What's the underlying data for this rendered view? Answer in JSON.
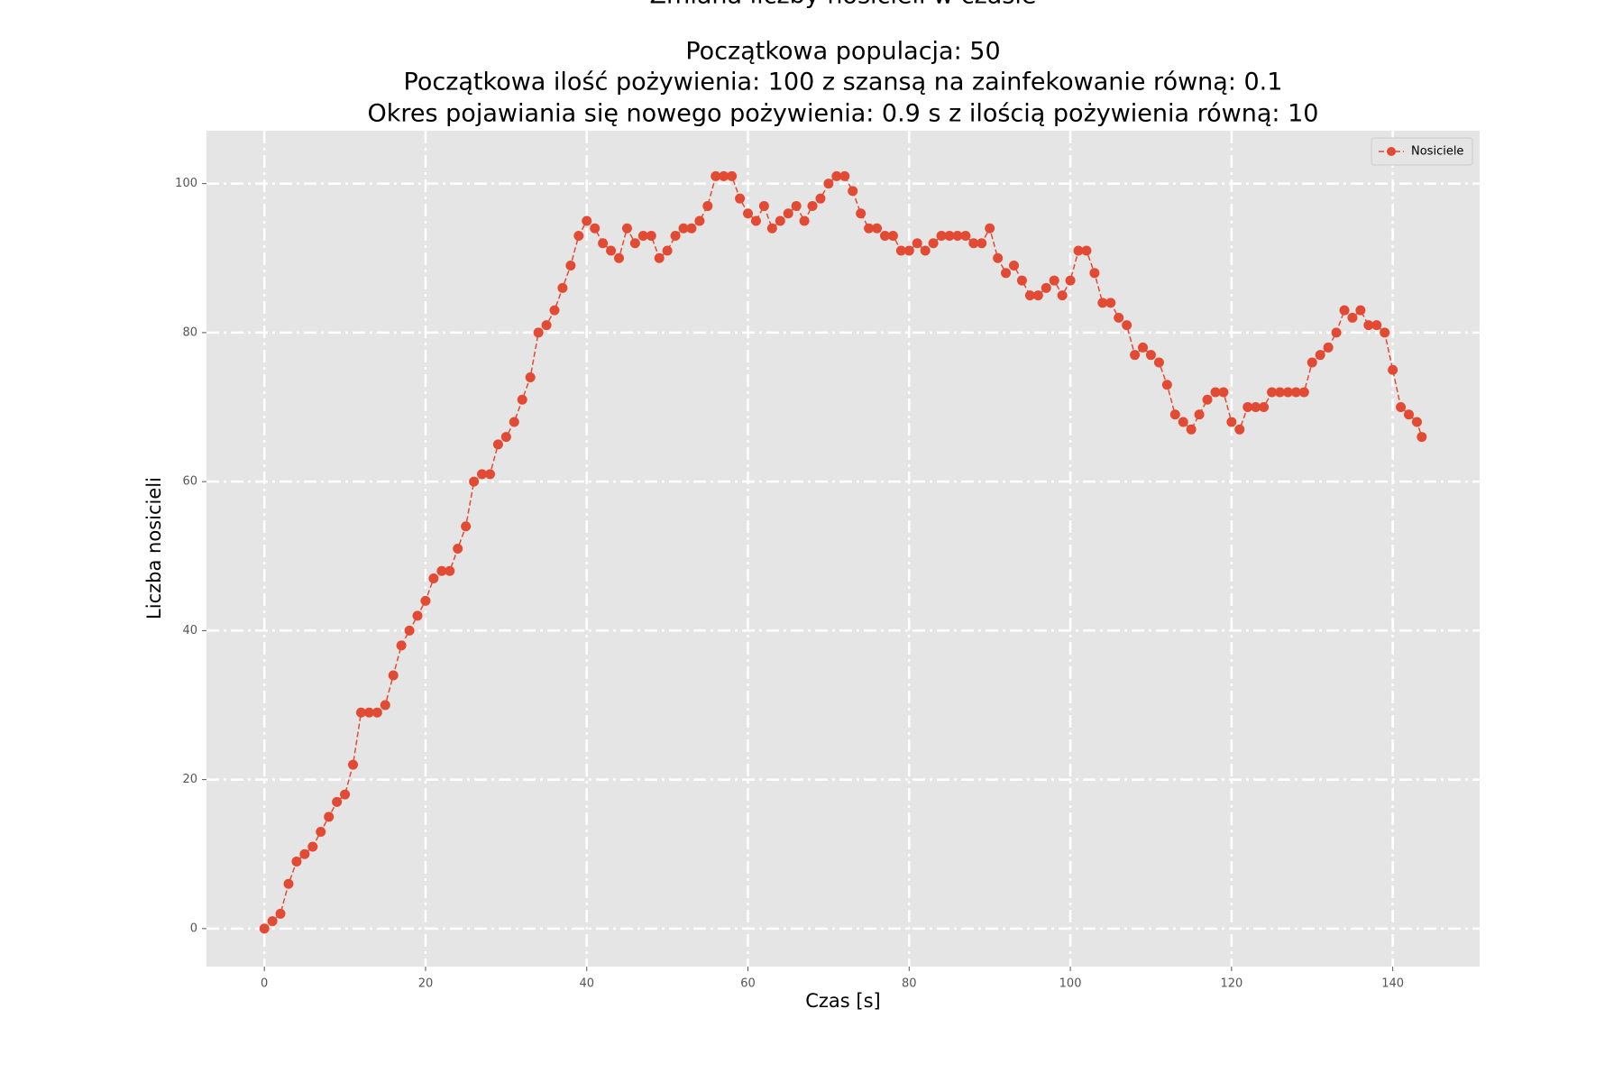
{
  "chart_data": {
    "type": "line",
    "title": "Zmiana liczby nosicieli w czasie",
    "subtitle": [
      "Początkowa populacja: 50",
      "Początkowa ilość pożywienia: 100 z szansą na zainfekowanie równą: 0.1",
      "Okres pojawiania się nowego pożywienia: 0.9 s z ilością pożywienia równą: 10"
    ],
    "x_label": "Czas [s]",
    "y_label": "Liczba nosicieli",
    "x": [
      0,
      1,
      2,
      3,
      4,
      5,
      6,
      7,
      8,
      9,
      10,
      11,
      12,
      13,
      14,
      15,
      16,
      17,
      18,
      19,
      20,
      21,
      22,
      23,
      24,
      25,
      26,
      27,
      28,
      29,
      30,
      31,
      32,
      33,
      34,
      35,
      36,
      37,
      38,
      39,
      40,
      41,
      42,
      43,
      44,
      45,
      46,
      47,
      48,
      49,
      50,
      51,
      52,
      53,
      54,
      55,
      56,
      57,
      58,
      59,
      60,
      61,
      62,
      63,
      64,
      65,
      66,
      67,
      68,
      69,
      70,
      71,
      72,
      73,
      74,
      75,
      76,
      77,
      78,
      79,
      80,
      81,
      82,
      83,
      84,
      85,
      86,
      87,
      88,
      89,
      90,
      91,
      92,
      93,
      94,
      95,
      96,
      97,
      98,
      99,
      100,
      101,
      102,
      103,
      104,
      105,
      106,
      107,
      108,
      109,
      110,
      111,
      112,
      113,
      114,
      115,
      116,
      117,
      118,
      119,
      120,
      121,
      122,
      123,
      124,
      125,
      126,
      127,
      128,
      129,
      130,
      131,
      132,
      133,
      134,
      135,
      136,
      137,
      138,
      139,
      140,
      141,
      142,
      143,
      143.6
    ],
    "series": [
      {
        "name": "Nosiciele",
        "color": "#e24a33",
        "values": [
          0,
          1,
          2,
          6,
          9,
          10,
          11,
          13,
          15,
          17,
          18,
          22,
          29,
          29,
          29,
          30,
          34,
          38,
          40,
          42,
          44,
          47,
          48,
          48,
          51,
          54,
          60,
          61,
          61,
          65,
          66,
          68,
          71,
          74,
          80,
          81,
          83,
          86,
          89,
          93,
          95,
          94,
          92,
          91,
          90,
          94,
          92,
          93,
          93,
          90,
          91,
          93,
          94,
          94,
          95,
          97,
          101,
          101,
          101,
          98,
          96,
          95,
          97,
          94,
          95,
          96,
          97,
          95,
          97,
          98,
          100,
          101,
          101,
          99,
          96,
          94,
          94,
          93,
          93,
          91,
          91,
          92,
          91,
          92,
          93,
          93,
          93,
          93,
          92,
          92,
          94,
          90,
          88,
          89,
          87,
          85,
          85,
          86,
          87,
          85,
          87,
          91,
          91,
          88,
          84,
          84,
          82,
          81,
          77,
          78,
          77,
          76,
          73,
          69,
          68,
          67,
          69,
          71,
          72,
          72,
          68,
          67,
          70,
          70,
          70,
          72,
          72,
          72,
          72,
          72,
          76,
          77,
          78,
          80,
          83,
          82,
          83,
          81,
          81,
          80,
          75,
          70,
          69,
          68,
          66
        ]
      }
    ],
    "xlim": [
      -7.18,
      150.78
    ],
    "ylim": [
      -5.1,
      107.1
    ],
    "xticks": [
      0,
      20,
      40,
      60,
      80,
      100,
      120,
      140
    ],
    "yticks": [
      0,
      20,
      40,
      60,
      80,
      100
    ],
    "grid": true,
    "legend": "upper right"
  }
}
